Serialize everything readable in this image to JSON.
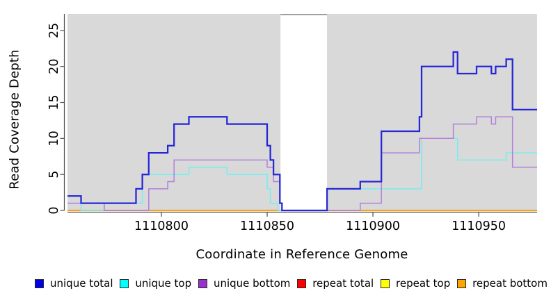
{
  "chart_data": {
    "type": "line",
    "subtype": "step",
    "title": "",
    "xlabel": "Coordinate in Reference Genome",
    "ylabel": "Read Coverage Depth",
    "xlim": [
      1110755.6,
      1110977.6
    ],
    "ylim": [
      0,
      27.3
    ],
    "x_ticks": [
      1110800,
      1110850,
      1110900,
      1110950
    ],
    "y_ticks": [
      0,
      5,
      10,
      15,
      20,
      25
    ],
    "grid": false,
    "plot_bg": "#d9d9d9",
    "axis_color": "#4d4d4d",
    "masked_region": {
      "x1": 1110856.3,
      "x2": 1110878.3,
      "color": "#ffffff",
      "top_border": "#a0a0a0"
    },
    "series": [
      {
        "name": "unique total",
        "color": "#2626d6",
        "line_width": 2.25,
        "z": 6,
        "steps": [
          [
            1110755.6,
            2
          ],
          [
            1110762,
            1
          ],
          [
            1110788,
            3
          ],
          [
            1110791,
            5
          ],
          [
            1110794,
            8
          ],
          [
            1110803,
            9
          ],
          [
            1110806,
            12
          ],
          [
            1110813,
            13
          ],
          [
            1110831,
            12
          ],
          [
            1110850,
            9
          ],
          [
            1110851.5,
            7
          ],
          [
            1110853,
            5
          ],
          [
            1110856,
            1
          ],
          [
            1110857,
            0
          ],
          [
            1110878.3,
            3
          ],
          [
            1110894,
            4
          ],
          [
            1110904,
            11
          ],
          [
            1110922,
            13
          ],
          [
            1110923,
            20
          ],
          [
            1110938,
            22
          ],
          [
            1110940,
            19
          ],
          [
            1110949,
            20
          ],
          [
            1110956,
            19
          ],
          [
            1110958,
            20
          ],
          [
            1110963,
            21
          ],
          [
            1110966,
            14
          ]
        ]
      },
      {
        "name": "unique top",
        "color": "#74eef0",
        "line_width": 1.5,
        "z": 4,
        "steps": [
          [
            1110755.6,
            1
          ],
          [
            1110762,
            0
          ],
          [
            1110773,
            1
          ],
          [
            1110791,
            5
          ],
          [
            1110813,
            6
          ],
          [
            1110831,
            5
          ],
          [
            1110850,
            3
          ],
          [
            1110851.5,
            1
          ],
          [
            1110855,
            0
          ],
          [
            1110878.3,
            3
          ],
          [
            1110923,
            10
          ],
          [
            1110940,
            7
          ],
          [
            1110963,
            8
          ]
        ]
      },
      {
        "name": "unique bottom",
        "color": "#b37fda",
        "line_width": 1.5,
        "z": 5,
        "steps": [
          [
            1110755.6,
            1
          ],
          [
            1110773,
            0
          ],
          [
            1110794,
            3
          ],
          [
            1110803,
            4
          ],
          [
            1110806,
            7
          ],
          [
            1110850,
            6
          ],
          [
            1110853,
            4
          ],
          [
            1110856,
            1
          ],
          [
            1110857,
            0
          ],
          [
            1110894,
            1
          ],
          [
            1110904,
            8
          ],
          [
            1110922,
            10
          ],
          [
            1110938,
            12
          ],
          [
            1110949,
            13
          ],
          [
            1110956,
            12
          ],
          [
            1110958,
            13
          ],
          [
            1110966,
            6
          ]
        ]
      },
      {
        "name": "repeat total",
        "color": "#dd1111",
        "line_width": 1.5,
        "z": 1,
        "steps": [
          [
            1110755.6,
            0
          ]
        ]
      },
      {
        "name": "repeat top",
        "color": "#ffff00",
        "line_width": 1.5,
        "z": 2,
        "steps": [
          [
            1110755.6,
            0
          ]
        ]
      },
      {
        "name": "repeat bottom",
        "color": "#ff9e00",
        "line_width": 1.8,
        "z": 3,
        "steps": [
          [
            1110755.6,
            0
          ]
        ]
      }
    ]
  },
  "legend": {
    "items": [
      {
        "key": "unique-total",
        "label": "unique total",
        "color": "#0000e8"
      },
      {
        "key": "unique-top",
        "label": "unique top",
        "color": "#00ffff"
      },
      {
        "key": "unique-bottom",
        "label": "unique bottom",
        "color": "#9932cc"
      },
      {
        "key": "repeat-total",
        "label": "repeat total",
        "color": "#ff0000"
      },
      {
        "key": "repeat-top",
        "label": "repeat top",
        "color": "#ffff00"
      },
      {
        "key": "repeat-bottom",
        "label": "repeat bottom",
        "color": "#ffa500"
      }
    ]
  }
}
